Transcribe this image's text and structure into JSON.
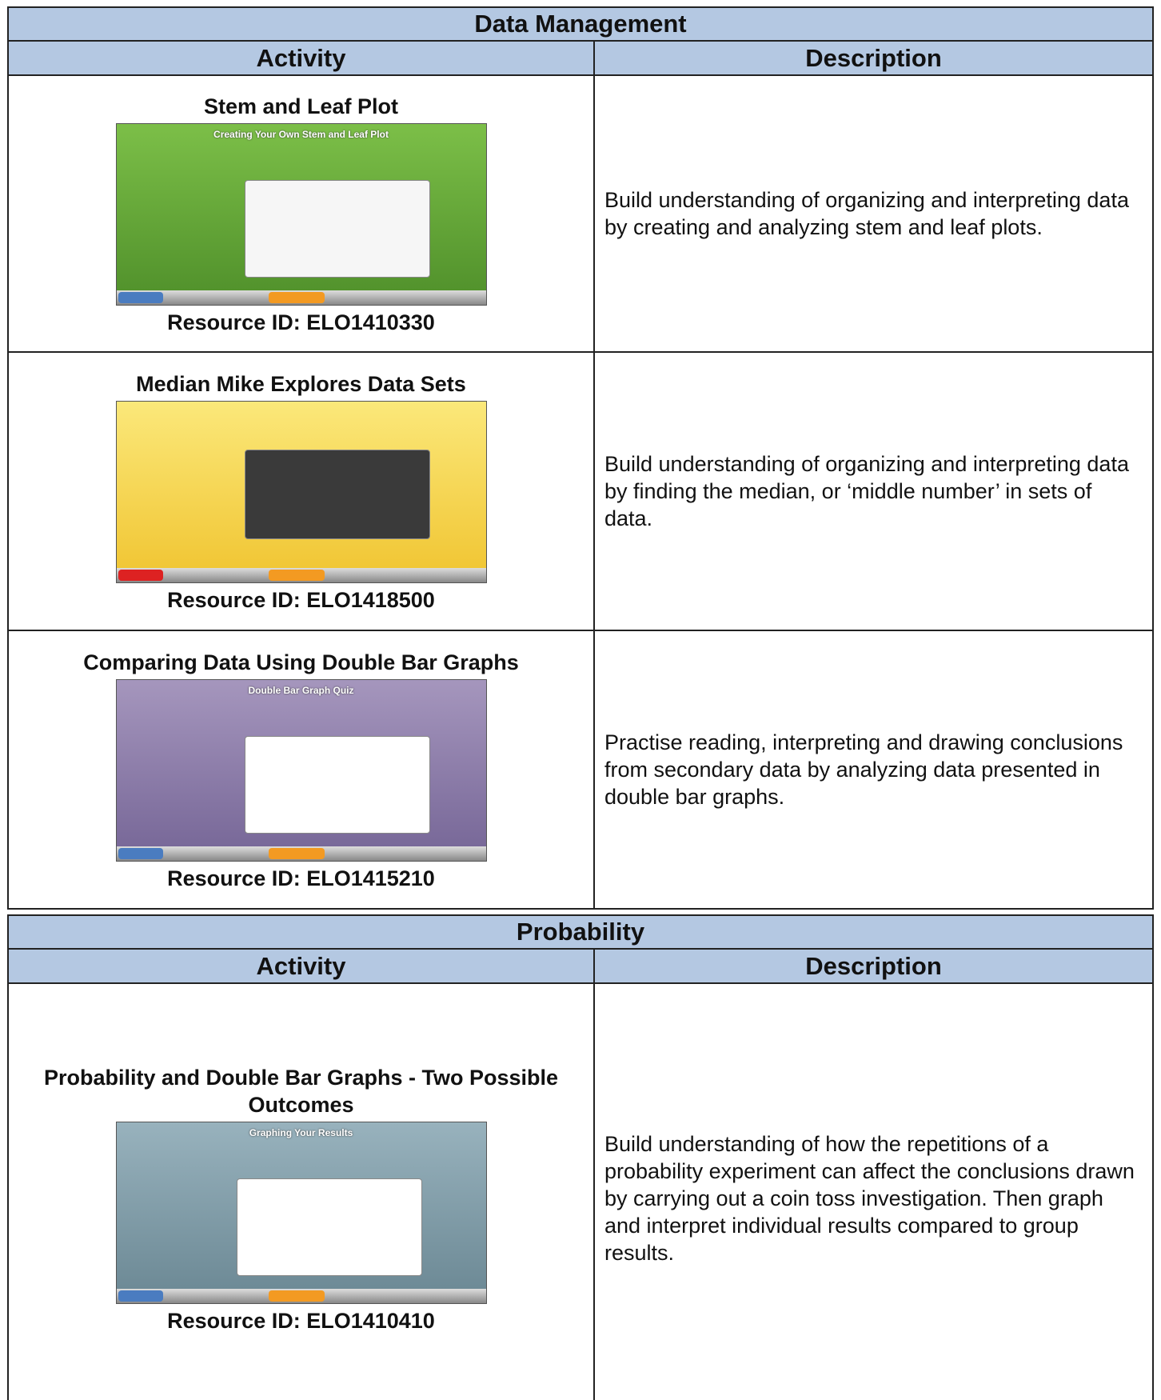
{
  "sections": [
    {
      "title": "Data Management",
      "headers": [
        "Activity",
        "Description"
      ],
      "rows": [
        {
          "activity": "Stem and Leaf Plot",
          "screen_title": "Creating Your Own Stem and Leaf Plot",
          "resource_id": "Resource ID: ELO1410330",
          "description": "Build understanding of organizing and interpreting data by creating and analyzing stem and leaf plots."
        },
        {
          "activity": "Median Mike Explores Data Sets",
          "resource_id": "Resource ID: ELO1418500",
          "description": "Build understanding of organizing and interpreting data by finding the median, or ‘middle number’ in sets of data."
        },
        {
          "activity": "Comparing Data Using Double Bar Graphs",
          "screen_title": "Double Bar Graph Quiz",
          "resource_id": "Resource ID: ELO1415210",
          "description": "Practise reading, interpreting and drawing conclusions from secondary data by analyzing data presented in double bar graphs."
        }
      ]
    },
    {
      "title": "Probability",
      "headers": [
        "Activity",
        "Description"
      ],
      "rows": [
        {
          "activity": "Probability and Double Bar Graphs - Two Possible Outcomes",
          "screen_title": "Graphing Your Results",
          "resource_id": "Resource ID: ELO1410410",
          "description": "Build understanding of how the repetitions of a probability experiment can affect the conclusions drawn by carrying out a coin toss investigation. Then graph and interpret individual results compared to group results."
        }
      ]
    }
  ]
}
